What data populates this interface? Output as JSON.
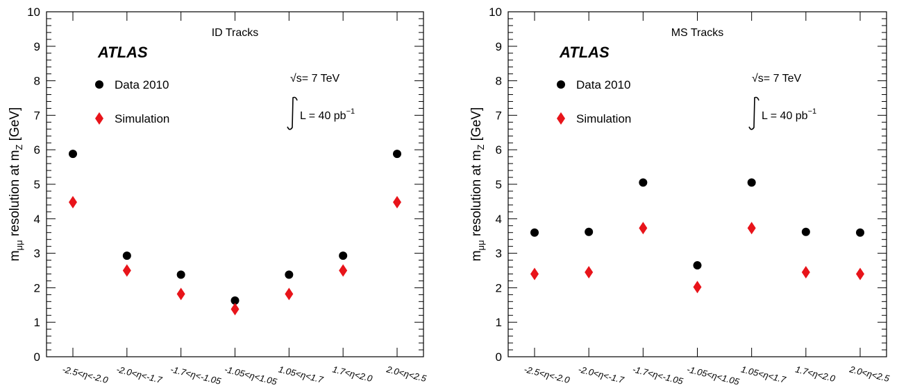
{
  "chart_data": [
    {
      "type": "scatter",
      "title": "ID Tracks",
      "experiment": "ATLAS",
      "energy": "√s= 7 TeV",
      "lumi": "L = 40 pb",
      "lumi_exp": "−1",
      "ylabel": "m",
      "ylabel_sub1": "μμ",
      "ylabel_mid": " resolution at m",
      "ylabel_sub2": "Z",
      "ylabel_end": " [GeV]",
      "ylim": [
        0,
        10
      ],
      "yticks": [
        "0",
        "1",
        "2",
        "3",
        "4",
        "5",
        "6",
        "7",
        "8",
        "9",
        "10"
      ],
      "categories": [
        "-2.5<η<-2.0",
        "-2.0<η<-1.7",
        "-1.7<η<-1.05",
        "-1.05<η<1.05",
        "1.05<η<1.7",
        "1.7<η<2.0",
        "2.0<η<2.5"
      ],
      "series": [
        {
          "name": "Data 2010",
          "marker": "circle",
          "color": "#000000",
          "values": [
            5.88,
            2.93,
            2.38,
            1.63,
            2.38,
            2.93,
            5.88
          ]
        },
        {
          "name": "Simulation",
          "marker": "diamond",
          "color": "#e8141a",
          "values": [
            4.48,
            2.5,
            1.82,
            1.38,
            1.82,
            2.5,
            4.48
          ]
        }
      ],
      "legend": "top-left"
    },
    {
      "type": "scatter",
      "title": "MS Tracks",
      "experiment": "ATLAS",
      "energy": "√s= 7 TeV",
      "lumi": "L = 40 pb",
      "lumi_exp": "−1",
      "ylabel": "m",
      "ylabel_sub1": "μμ",
      "ylabel_mid": " resolution at m",
      "ylabel_sub2": "Z",
      "ylabel_end": " [GeV]",
      "ylim": [
        0,
        10
      ],
      "yticks": [
        "0",
        "1",
        "2",
        "3",
        "4",
        "5",
        "6",
        "7",
        "8",
        "9",
        "10"
      ],
      "categories": [
        "-2.5<η<-2.0",
        "-2.0<η<-1.7",
        "-1.7<η<-1.05",
        "-1.05<η<1.05",
        "1.05<η<1.7",
        "1.7<η<2.0",
        "2.0<η<2.5"
      ],
      "series": [
        {
          "name": "Data 2010",
          "marker": "circle",
          "color": "#000000",
          "values": [
            3.6,
            3.62,
            5.05,
            2.65,
            5.05,
            3.62,
            3.6
          ]
        },
        {
          "name": "Simulation",
          "marker": "diamond",
          "color": "#e8141a",
          "values": [
            2.4,
            2.45,
            3.73,
            2.02,
            3.73,
            2.45,
            2.4
          ]
        }
      ],
      "legend": "top-left"
    }
  ]
}
